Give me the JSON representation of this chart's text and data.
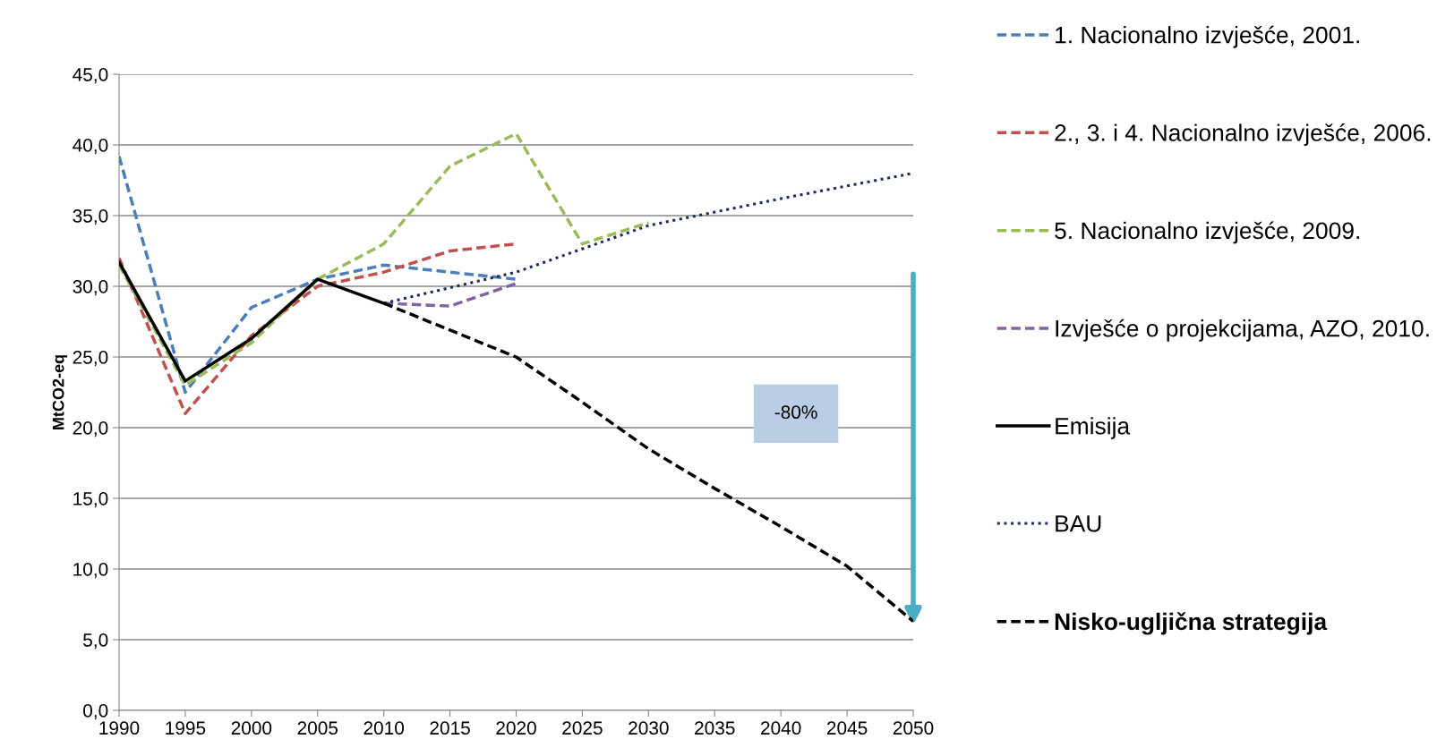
{
  "chart_data": {
    "type": "line",
    "ylabel": "MtCO2-eq",
    "xlim": [
      1990,
      2050
    ],
    "xticks": [
      1990,
      1995,
      2000,
      2005,
      2010,
      2015,
      2020,
      2025,
      2030,
      2035,
      2040,
      2045,
      2050
    ],
    "ylim": [
      0,
      45
    ],
    "yticks": [
      {
        "value": 0,
        "label": "0,0"
      },
      {
        "value": 5,
        "label": "5,0"
      },
      {
        "value": 10,
        "label": "10,0"
      },
      {
        "value": 15,
        "label": "15,0"
      },
      {
        "value": 20,
        "label": "20,0"
      },
      {
        "value": 25,
        "label": "25,0"
      },
      {
        "value": 30,
        "label": "30,0"
      },
      {
        "value": 35,
        "label": "35,0"
      },
      {
        "value": 40,
        "label": "40,0"
      },
      {
        "value": 45,
        "label": "45,0"
      }
    ],
    "grid": "y",
    "legend": "right",
    "annotations": [
      "-80%"
    ],
    "series": [
      {
        "name": "1. Nacionalno izvješće, 2001.",
        "color": "#4a7ebb",
        "line_style": "dashed",
        "x": [
          1990,
          1995,
          2000,
          2005,
          2010,
          2015,
          2020
        ],
        "values": [
          39.2,
          22.5,
          28.5,
          30.5,
          31.5,
          31.0,
          30.5
        ]
      },
      {
        "name": "2., 3. i 4. Nacionalno izvješće, 2006.",
        "color": "#c0504d",
        "line_style": "dashed",
        "x": [
          1990,
          1995,
          2000,
          2005,
          2010,
          2015,
          2020
        ],
        "values": [
          32.0,
          21.0,
          26.5,
          30.0,
          31.0,
          32.5,
          33.0
        ]
      },
      {
        "name": "5. Nacionalno izvješće, 2009.",
        "color": "#9bbb59",
        "line_style": "dashed",
        "x": [
          1990,
          1995,
          2000,
          2005,
          2010,
          2015,
          2020,
          2025,
          2030
        ],
        "values": [
          31.5,
          23.0,
          26.0,
          30.5,
          33.0,
          38.5,
          40.8,
          33.0,
          34.5
        ]
      },
      {
        "name": "Izvješće o projekcijama, AZO, 2010.",
        "color": "#8064a2",
        "line_style": "dashed",
        "x": [
          2010,
          2015,
          2020
        ],
        "values": [
          28.8,
          28.6,
          30.2
        ]
      },
      {
        "name": "Emisija",
        "color": "#000000",
        "line_style": "solid",
        "x": [
          1990,
          1995,
          2000,
          2005,
          2010
        ],
        "values": [
          31.7,
          23.3,
          26.3,
          30.5,
          28.8
        ]
      },
      {
        "name": "BAU",
        "color": "#1f2a60",
        "line_style": "dotted",
        "x": [
          2010,
          2020,
          2030,
          2040,
          2050
        ],
        "values": [
          28.8,
          31.0,
          34.3,
          36.2,
          38.0
        ]
      },
      {
        "name": "Nisko-ugljična strategija",
        "color": "#000000",
        "line_style": "dashed",
        "x": [
          2010,
          2015,
          2020,
          2025,
          2030,
          2035,
          2040,
          2045,
          2050
        ],
        "values": [
          28.8,
          26.9,
          25.0,
          21.8,
          18.5,
          15.7,
          13.0,
          10.2,
          6.3
        ]
      }
    ]
  }
}
